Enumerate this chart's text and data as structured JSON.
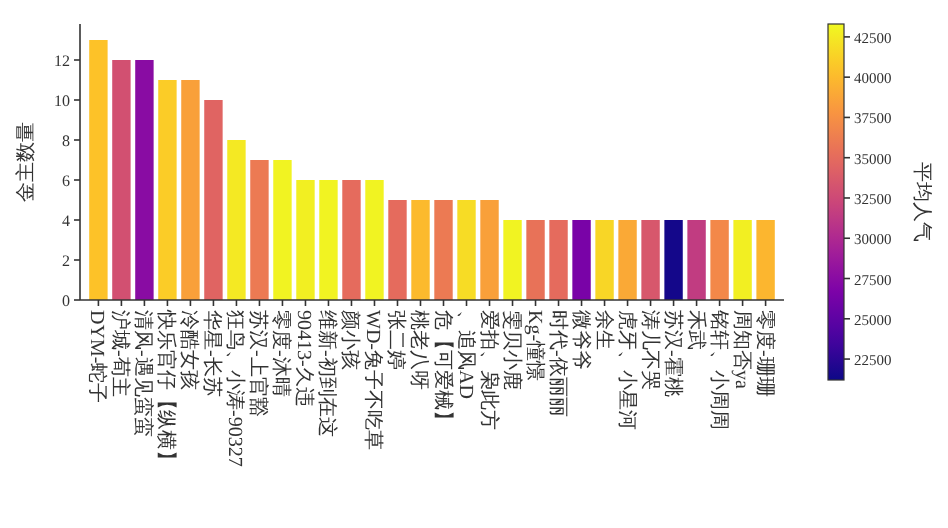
{
  "chart_data": {
    "type": "bar",
    "ylabel": "金主数量",
    "clabel": "平均人气",
    "categories": [
      "DYM-蛇子",
      "沪城-荀主",
      "清风-遇见蛮蛮",
      "快乐官仔【纵横】",
      "冷酷女孩",
      "华星-长苏",
      "狂鸟、小涛-90327",
      "苏汉-上官豁",
      "零度-沐晴",
      "90413-久违",
      "维新-初到在这",
      "颜小孩",
      "WD-兔子不吃草",
      "张二婷",
      "桃老八呀",
      "危【可爱械】",
      "、追风AD",
      "爱拍、枭此方",
      "雯贝小鹿",
      "Kg-憧憬",
      "时代-依丽丽",
      "微爷爷",
      "余生",
      "虎牙、小星河",
      "涛儿不哭",
      "苏汉-霍桃",
      "禾武",
      "铭轩、小周周",
      "周知否ya",
      "零度-珊珊"
    ],
    "values": [
      13,
      12,
      12,
      11,
      11,
      10,
      8,
      7,
      7,
      6,
      6,
      6,
      6,
      5,
      5,
      5,
      5,
      5,
      4,
      4,
      4,
      4,
      4,
      4,
      4,
      4,
      4,
      4,
      4,
      4
    ],
    "cvalues": [
      40500,
      33000,
      27500,
      41000,
      38500,
      34500,
      42500,
      36000,
      43000,
      42800,
      43000,
      35000,
      43000,
      35000,
      40000,
      36000,
      41800,
      38500,
      43000,
      35500,
      35000,
      26500,
      41500,
      39000,
      33500,
      21500,
      31500,
      37000,
      42800,
      39800
    ],
    "clim": [
      21200,
      43300
    ],
    "cticks": [
      22500,
      25000,
      27500,
      30000,
      32500,
      35000,
      37500,
      40000,
      42500
    ],
    "ylim": [
      0,
      13.8
    ],
    "yticks": [
      0,
      2,
      4,
      6,
      8,
      10,
      12
    ]
  }
}
